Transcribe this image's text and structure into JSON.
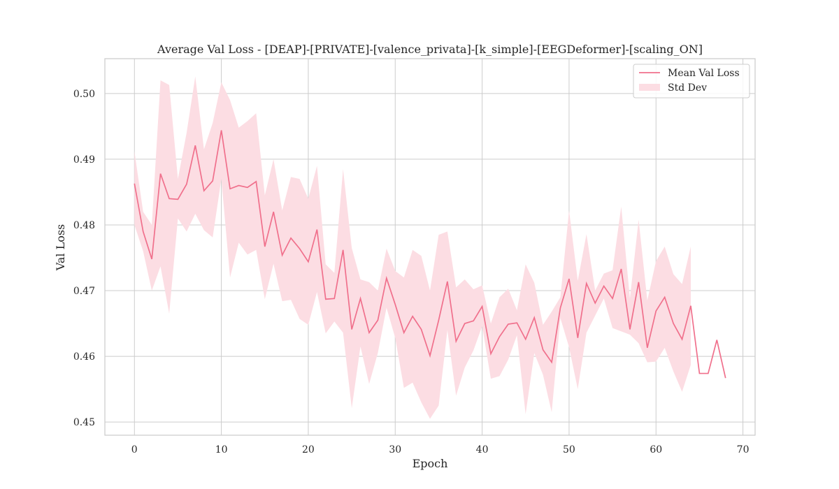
{
  "chart_data": {
    "type": "line",
    "title": "Average Val Loss - [DEAP]-[PRIVATE]-[valence_privata]-[k_simple]-[EEGDeformer]-[scaling_ON]",
    "xlabel": "Epoch",
    "ylabel": "Val Loss",
    "xlim": [
      -3.4,
      71.4
    ],
    "ylim": [
      0.448,
      0.5053
    ],
    "xticks": [
      0,
      10,
      20,
      30,
      40,
      50,
      60,
      70
    ],
    "yticks": [
      0.45,
      0.46,
      0.47,
      0.48,
      0.49,
      0.5
    ],
    "ytick_labels": [
      "0.45",
      "0.46",
      "0.47",
      "0.48",
      "0.49",
      "0.50"
    ],
    "grid": true,
    "legend_position": "upper right",
    "colors": {
      "line": "#f0708c",
      "band": "#fcdde3",
      "grid": "#cccccc",
      "spine": "#cccccc"
    },
    "series": [
      {
        "name": "Mean Val Loss",
        "x": [
          0,
          1,
          2,
          3,
          4,
          5,
          6,
          7,
          8,
          9,
          10,
          11,
          12,
          13,
          14,
          15,
          16,
          17,
          18,
          19,
          20,
          21,
          22,
          23,
          24,
          25,
          26,
          27,
          28,
          29,
          30,
          31,
          32,
          33,
          34,
          35,
          36,
          37,
          38,
          39,
          40,
          41,
          42,
          43,
          44,
          45,
          46,
          47,
          48,
          49,
          50,
          51,
          52,
          53,
          54,
          55,
          56,
          57,
          58,
          59,
          60,
          61,
          62,
          63,
          64,
          65,
          66,
          67,
          68
        ],
        "values": [
          0.4863,
          0.479,
          0.4748,
          0.4878,
          0.484,
          0.4839,
          0.4862,
          0.4921,
          0.4852,
          0.4867,
          0.4944,
          0.4855,
          0.486,
          0.4857,
          0.4866,
          0.4767,
          0.482,
          0.4754,
          0.478,
          0.4764,
          0.4744,
          0.4793,
          0.4687,
          0.4688,
          0.4762,
          0.4641,
          0.4688,
          0.4636,
          0.4655,
          0.4719,
          0.4679,
          0.4636,
          0.4661,
          0.4641,
          0.4601,
          0.4655,
          0.4714,
          0.4623,
          0.465,
          0.4654,
          0.4676,
          0.4604,
          0.463,
          0.4649,
          0.4651,
          0.4626,
          0.4659,
          0.461,
          0.4591,
          0.4674,
          0.4718,
          0.4628,
          0.4711,
          0.4681,
          0.4707,
          0.4688,
          0.4733,
          0.4641,
          0.4713,
          0.4613,
          0.4669,
          0.469,
          0.465,
          0.4626,
          0.4677,
          0.4574,
          0.4574,
          0.4625,
          0.4567
        ]
      }
    ],
    "band": {
      "name": "Std Dev",
      "x": [
        0,
        1,
        2,
        3,
        4,
        5,
        6,
        7,
        8,
        9,
        10,
        11,
        12,
        13,
        14,
        15,
        16,
        17,
        18,
        19,
        20,
        21,
        22,
        23,
        24,
        25,
        26,
        27,
        28,
        29,
        30,
        31,
        32,
        33,
        34,
        35,
        36,
        37,
        38,
        39,
        40,
        41,
        42,
        43,
        44,
        45,
        46,
        47,
        48,
        49,
        50,
        51,
        52,
        53,
        54,
        55,
        56,
        57,
        58,
        59,
        60,
        61,
        62,
        63,
        64
      ],
      "upper": [
        0.4912,
        0.482,
        0.48,
        0.502,
        0.5013,
        0.487,
        0.494,
        0.5026,
        0.4915,
        0.4955,
        0.5017,
        0.499,
        0.4948,
        0.4958,
        0.497,
        0.4845,
        0.49,
        0.4822,
        0.4873,
        0.487,
        0.484,
        0.489,
        0.474,
        0.4727,
        0.4885,
        0.4765,
        0.4717,
        0.4713,
        0.47,
        0.4764,
        0.473,
        0.472,
        0.4762,
        0.4753,
        0.47,
        0.4785,
        0.479,
        0.4705,
        0.4717,
        0.4702,
        0.4708,
        0.465,
        0.469,
        0.4703,
        0.467,
        0.474,
        0.4712,
        0.4648,
        0.4668,
        0.469,
        0.4822,
        0.4715,
        0.4786,
        0.47,
        0.4726,
        0.4731,
        0.4828,
        0.4688,
        0.4808,
        0.4685,
        0.4745,
        0.4767,
        0.4725,
        0.471,
        0.4767
      ],
      "lower": [
        0.48,
        0.476,
        0.47,
        0.4737,
        0.4665,
        0.481,
        0.479,
        0.4817,
        0.4792,
        0.4781,
        0.487,
        0.472,
        0.4773,
        0.4755,
        0.4762,
        0.4687,
        0.4741,
        0.4684,
        0.4686,
        0.4657,
        0.4648,
        0.4698,
        0.4635,
        0.4653,
        0.4636,
        0.4521,
        0.4615,
        0.4558,
        0.4605,
        0.4674,
        0.4628,
        0.4552,
        0.456,
        0.453,
        0.4505,
        0.4525,
        0.464,
        0.454,
        0.4583,
        0.4609,
        0.4646,
        0.4566,
        0.457,
        0.4595,
        0.4632,
        0.4512,
        0.4605,
        0.4572,
        0.4515,
        0.4658,
        0.4614,
        0.455,
        0.4636,
        0.4662,
        0.4688,
        0.4643,
        0.4638,
        0.4633,
        0.462,
        0.4591,
        0.4592,
        0.4613,
        0.4577,
        0.4546,
        0.4587
      ]
    }
  }
}
